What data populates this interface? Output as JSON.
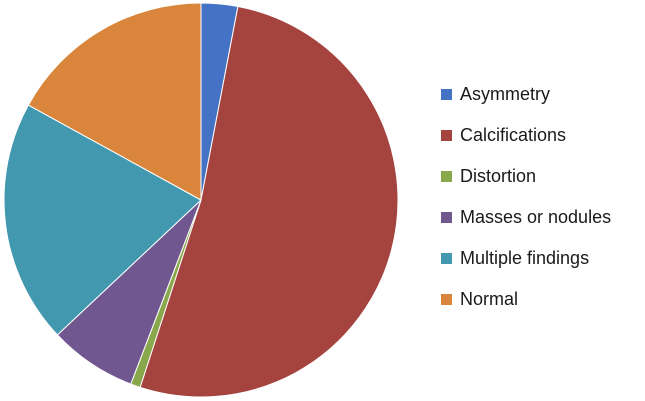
{
  "chart_data": {
    "type": "pie",
    "title": "",
    "legend_position": "right",
    "start_angle_deg": 0,
    "direction": "clockwise",
    "slices": [
      {
        "label": "Asymmetry",
        "value": 3.0,
        "color": "#4472c4"
      },
      {
        "label": "Calcifications",
        "value": 52.0,
        "color": "#a5433f"
      },
      {
        "label": "Distortion",
        "value": 0.8,
        "color": "#89a84b"
      },
      {
        "label": "Masses or nodules",
        "value": 7.2,
        "color": "#71578f"
      },
      {
        "label": "Multiple findings",
        "value": 20.0,
        "color": "#4198af"
      },
      {
        "label": "Normal",
        "value": 17.0,
        "color": "#d9853b"
      }
    ]
  }
}
